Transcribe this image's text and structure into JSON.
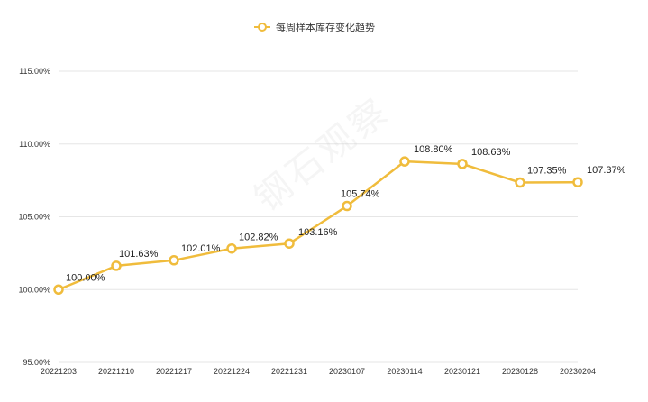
{
  "legend": {
    "label": "每周样本库存变化趋势"
  },
  "watermark": "钢石观察",
  "colors": {
    "series": "#f0bc3c",
    "grid": "#e6e6e6",
    "axis_text": "#333333"
  },
  "chart_data": {
    "type": "line",
    "categories": [
      "20221203",
      "20221210",
      "20221217",
      "20221224",
      "20221231",
      "20230107",
      "20230114",
      "20230121",
      "20230128",
      "20230204"
    ],
    "series": [
      {
        "name": "每周样本库存变化趋势",
        "values": [
          100.0,
          101.63,
          102.01,
          102.82,
          103.16,
          105.74,
          108.8,
          108.63,
          107.35,
          107.37
        ],
        "labels": [
          "100.00%",
          "101.63%",
          "102.01%",
          "102.82%",
          "103.16%",
          "105.74%",
          "108.80%",
          "108.63%",
          "107.35%",
          "107.37%"
        ]
      }
    ],
    "ylim": [
      95,
      115
    ],
    "yticks": [
      95,
      100,
      105,
      110,
      115
    ],
    "ytick_labels": [
      "95.00%",
      "100.00%",
      "105.00%",
      "110.00%",
      "115.00%"
    ],
    "grid": true,
    "legend_position": "top-center"
  }
}
